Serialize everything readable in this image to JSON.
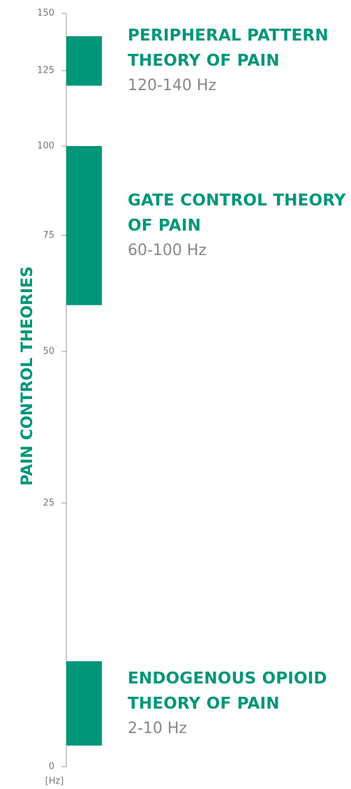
{
  "chart_data": {
    "type": "range-bar",
    "ylabel": "PAIN CONTROL THEORIES",
    "yunit": "[Hz]",
    "color": "#00967a",
    "categories": [
      "PERIPHERAL PATTERN THEORY OF PAIN",
      "GATE CONTROL THEORY OF PAIN",
      "ENDOGENOUS OPIOID THEORY OF PAIN"
    ],
    "values": [
      [
        120,
        140
      ],
      [
        60,
        100
      ],
      [
        2,
        10
      ]
    ],
    "value_labels": [
      "120-140 Hz",
      "60-100 Hz",
      "2-10 Hz"
    ],
    "ylim": [
      0,
      150
    ],
    "yticks": [
      0,
      25,
      50,
      75,
      100,
      125,
      150
    ]
  }
}
